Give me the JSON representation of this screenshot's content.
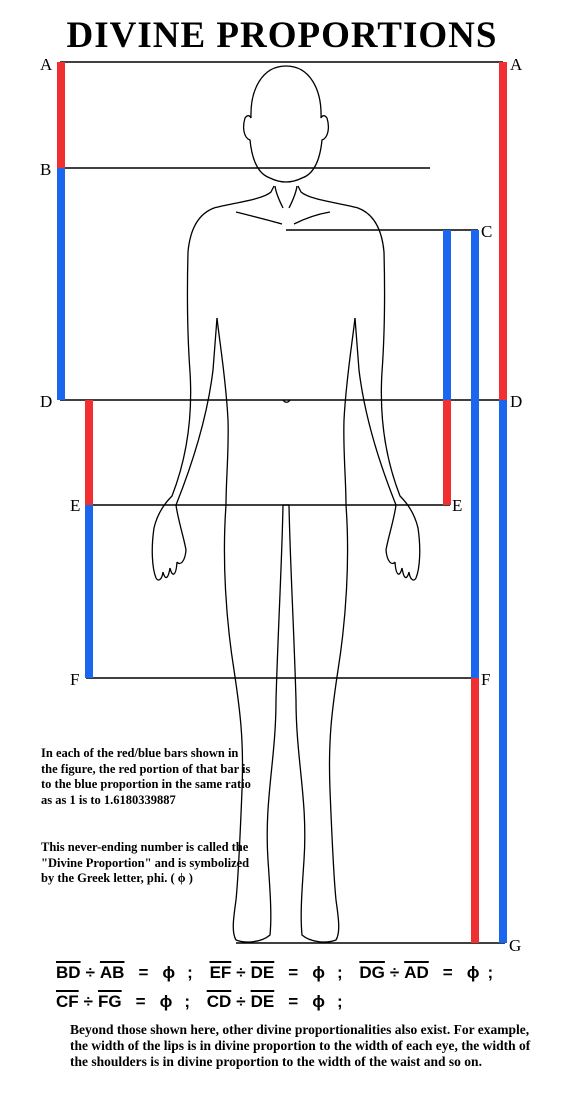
{
  "title": "DIVINE PROPORTIONS",
  "point_labels": {
    "left": [
      "A",
      "B",
      "D",
      "E",
      "F"
    ],
    "right": [
      "A",
      "C",
      "D",
      "E",
      "F",
      "G"
    ]
  },
  "colors": {
    "red": "#f03030",
    "blue": "#1a66ee",
    "line": "#000000"
  },
  "explanation": {
    "para1": "In each of the red/blue bars shown in the figure, the red portion of that bar is to the blue proportion in the same ratio as as 1 is to 1.6180339887",
    "para2": "This never-ending number is called the \"Divine Proportion\" and is symbolized by the Greek letter, phi. ( ϕ )"
  },
  "equations": {
    "row1": [
      {
        "a": "BD",
        "b": "AB",
        "result": "ϕ"
      },
      {
        "a": "EF",
        "b": "DE",
        "result": "ϕ"
      },
      {
        "a": "DG",
        "b": "AD",
        "result": "ϕ"
      }
    ],
    "row2": [
      {
        "a": "CF",
        "b": "FG",
        "result": "ϕ"
      },
      {
        "a": "CD",
        "b": "DE",
        "result": "ϕ"
      }
    ],
    "divide": "÷",
    "equals": "=",
    "separator": ";"
  },
  "footer": "Beyond those shown here, other divine proportionalities also exist. For example, the width of the lips is in divine proportion to the width of each eye, the width of the shoulders is in divine proportion to the width of the waist and so on."
}
